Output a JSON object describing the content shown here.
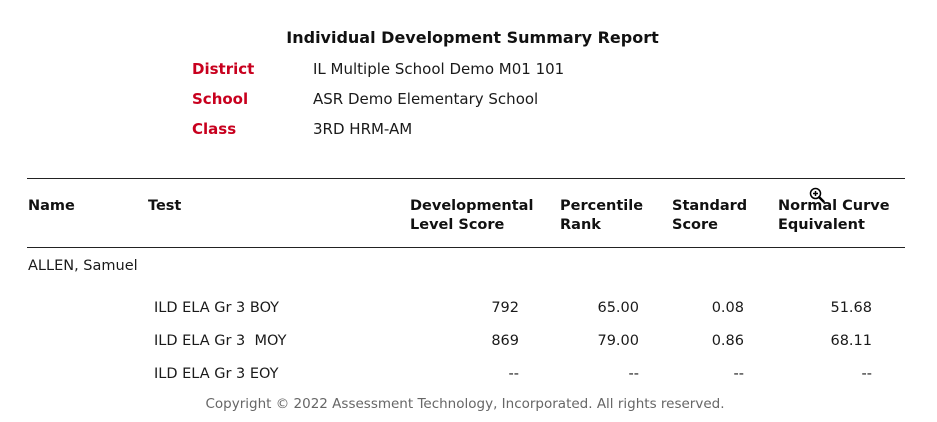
{
  "report": {
    "title": "Individual Development Summary Report",
    "meta": [
      {
        "label": "District",
        "value": "IL Multiple School Demo M01 101"
      },
      {
        "label": "School",
        "value": "ASR Demo Elementary School"
      },
      {
        "label": "Class",
        "value": "3RD HRM-AM"
      }
    ]
  },
  "table": {
    "headers": {
      "name": "Name",
      "test": "Test",
      "dls_1": "Developmental",
      "dls_2": "Level Score",
      "pr_1": "Percentile",
      "pr_2": "Rank",
      "ss_1": "Standard",
      "ss_2": "Score",
      "nce_1": "Normal Curve",
      "nce_2": "Equivalent"
    },
    "student": "ALLEN, Samuel",
    "rows": [
      {
        "test": "ILD ELA Gr 3 BOY",
        "dls": "792",
        "pr": "65.00",
        "ss": "0.08",
        "nce": "51.68"
      },
      {
        "test": "ILD ELA Gr 3  MOY",
        "dls": "869",
        "pr": "79.00",
        "ss": "0.86",
        "nce": "68.11"
      },
      {
        "test": "ILD ELA Gr 3 EOY",
        "dls": "--",
        "pr": "--",
        "ss": "--",
        "nce": "--"
      }
    ]
  },
  "footer": {
    "copyright": "Copyright © 2022 Assessment Technology, Incorporated.  All rights reserved."
  },
  "colors": {
    "label_red": "#c8001e"
  },
  "icons": {
    "cursor": "zoom-in-cursor-icon"
  }
}
